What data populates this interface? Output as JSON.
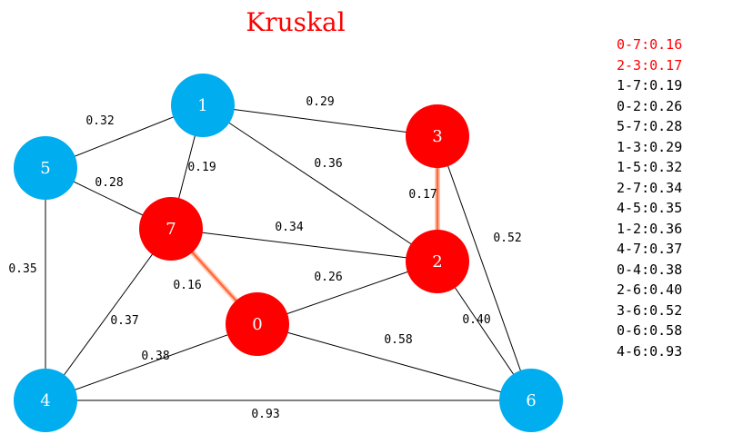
{
  "title": "Kruskal",
  "colors": {
    "title": "#ff0000",
    "unvisited_node": "#00adef",
    "selected_node": "#ff0000",
    "edge": "#000000",
    "selected_edge": "#ff6a3d",
    "selected_list_text": "#ff0000",
    "list_text": "#000000"
  },
  "nodes": [
    {
      "id": "0",
      "state": "selected"
    },
    {
      "id": "1",
      "state": "unvisited"
    },
    {
      "id": "2",
      "state": "selected"
    },
    {
      "id": "3",
      "state": "selected"
    },
    {
      "id": "4",
      "state": "unvisited"
    },
    {
      "id": "5",
      "state": "unvisited"
    },
    {
      "id": "6",
      "state": "unvisited"
    },
    {
      "id": "7",
      "state": "selected"
    }
  ],
  "edges": [
    {
      "from": "1",
      "to": "5",
      "weight": "0.32",
      "selected": false
    },
    {
      "from": "1",
      "to": "3",
      "weight": "0.29",
      "selected": false
    },
    {
      "from": "1",
      "to": "7",
      "weight": "0.19",
      "selected": false
    },
    {
      "from": "1",
      "to": "2",
      "weight": "0.36",
      "selected": false
    },
    {
      "from": "5",
      "to": "7",
      "weight": "0.28",
      "selected": false
    },
    {
      "from": "5",
      "to": "4",
      "weight": "0.35",
      "selected": false
    },
    {
      "from": "3",
      "to": "2",
      "weight": "0.17",
      "selected": true
    },
    {
      "from": "3",
      "to": "6",
      "weight": "0.52",
      "selected": false
    },
    {
      "from": "7",
      "to": "2",
      "weight": "0.34",
      "selected": false
    },
    {
      "from": "7",
      "to": "0",
      "weight": "0.16",
      "selected": true
    },
    {
      "from": "7",
      "to": "4",
      "weight": "0.37",
      "selected": false
    },
    {
      "from": "0",
      "to": "2",
      "weight": "0.26",
      "selected": false
    },
    {
      "from": "2",
      "to": "6",
      "weight": "0.40",
      "selected": false
    },
    {
      "from": "0",
      "to": "4",
      "weight": "0.38",
      "selected": false
    },
    {
      "from": "0",
      "to": "6",
      "weight": "0.58",
      "selected": false
    },
    {
      "from": "4",
      "to": "6",
      "weight": "0.93",
      "selected": false
    }
  ],
  "sorted_edges": [
    {
      "text": "0-7:0.16",
      "selected": true
    },
    {
      "text": "2-3:0.17",
      "selected": true
    },
    {
      "text": "1-7:0.19",
      "selected": false
    },
    {
      "text": "0-2:0.26",
      "selected": false
    },
    {
      "text": "5-7:0.28",
      "selected": false
    },
    {
      "text": "1-3:0.29",
      "selected": false
    },
    {
      "text": "1-5:0.32",
      "selected": false
    },
    {
      "text": "2-7:0.34",
      "selected": false
    },
    {
      "text": "4-5:0.35",
      "selected": false
    },
    {
      "text": "1-2:0.36",
      "selected": false
    },
    {
      "text": "4-7:0.37",
      "selected": false
    },
    {
      "text": "0-4:0.38",
      "selected": false
    },
    {
      "text": "2-6:0.40",
      "selected": false
    },
    {
      "text": "3-6:0.52",
      "selected": false
    },
    {
      "text": "0-6:0.58",
      "selected": false
    },
    {
      "text": "4-6:0.93",
      "selected": false
    }
  ]
}
